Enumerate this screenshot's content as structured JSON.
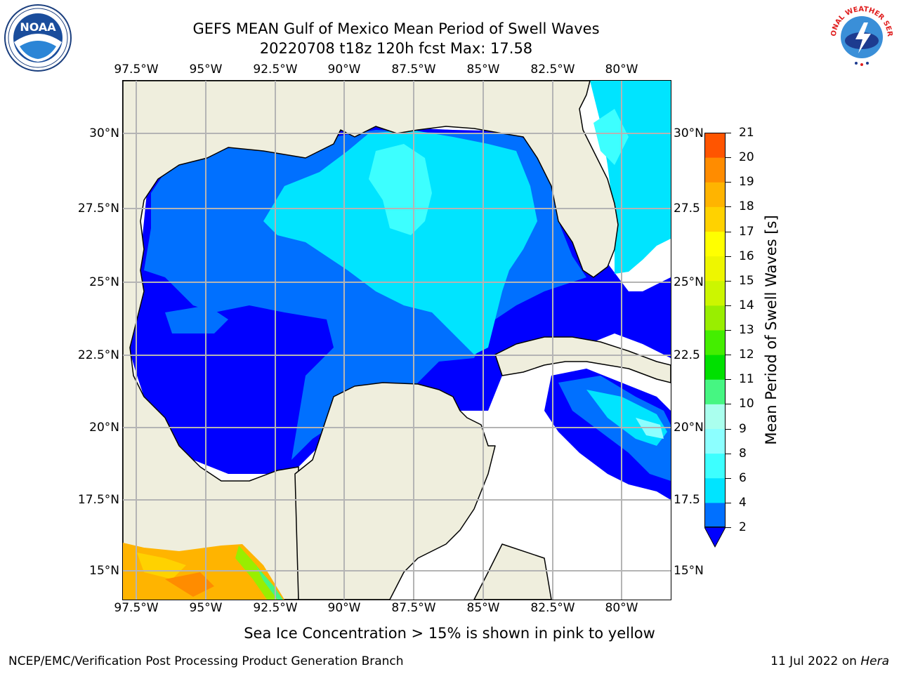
{
  "title": {
    "line1": "GEFS MEAN Gulf of Mexico Mean Period of Swell Waves",
    "line2": "20220708 t18z 120h fcst   Max: 17.58"
  },
  "map": {
    "lon_ticks": [
      "97.5°W",
      "95°W",
      "92.5°W",
      "90°W",
      "87.5°W",
      "85°W",
      "82.5°W",
      "80°W"
    ],
    "lat_ticks_left": [
      "30°N",
      "27.5°N",
      "25°N",
      "22.5°N",
      "20°N",
      "17.5°N",
      "15°N"
    ],
    "lat_ticks_right": [
      "30°N",
      "27.5",
      "25°N",
      "22.5",
      "20°N",
      "17.5",
      "15°N"
    ],
    "land_color": "#efeedd",
    "grid_color": "#b4b4b4"
  },
  "colorbar": {
    "label": "Mean Period of Swell Waves [s]",
    "ticks": [
      "2",
      "4",
      "6",
      "8",
      "9",
      "10",
      "11",
      "12",
      "13",
      "14",
      "15",
      "16",
      "17",
      "18",
      "19",
      "20",
      "21"
    ],
    "colors": [
      "#0070ff",
      "#00e4ff",
      "#3dffff",
      "#8cffff",
      "#aaffee",
      "#46f682",
      "#00e000",
      "#44ee00",
      "#99ee00",
      "#ccf600",
      "#eef600",
      "#ffff00",
      "#ffd200",
      "#ffb400",
      "#ff8c00",
      "#ff5500",
      "#ff2800",
      "#ff0000"
    ],
    "under_color": "#0000ff"
  },
  "footer": {
    "note": "Sea Ice Concentration > 15% is shown in pink to yellow",
    "credit_left": "NCEP/EMC/Verification Post Processing Product Generation Branch",
    "credit_date": "11 Jul 2022 on",
    "credit_host": "Hera"
  },
  "logos": {
    "left": "NOAA",
    "right": "NATIONAL WEATHER SERVICE"
  }
}
